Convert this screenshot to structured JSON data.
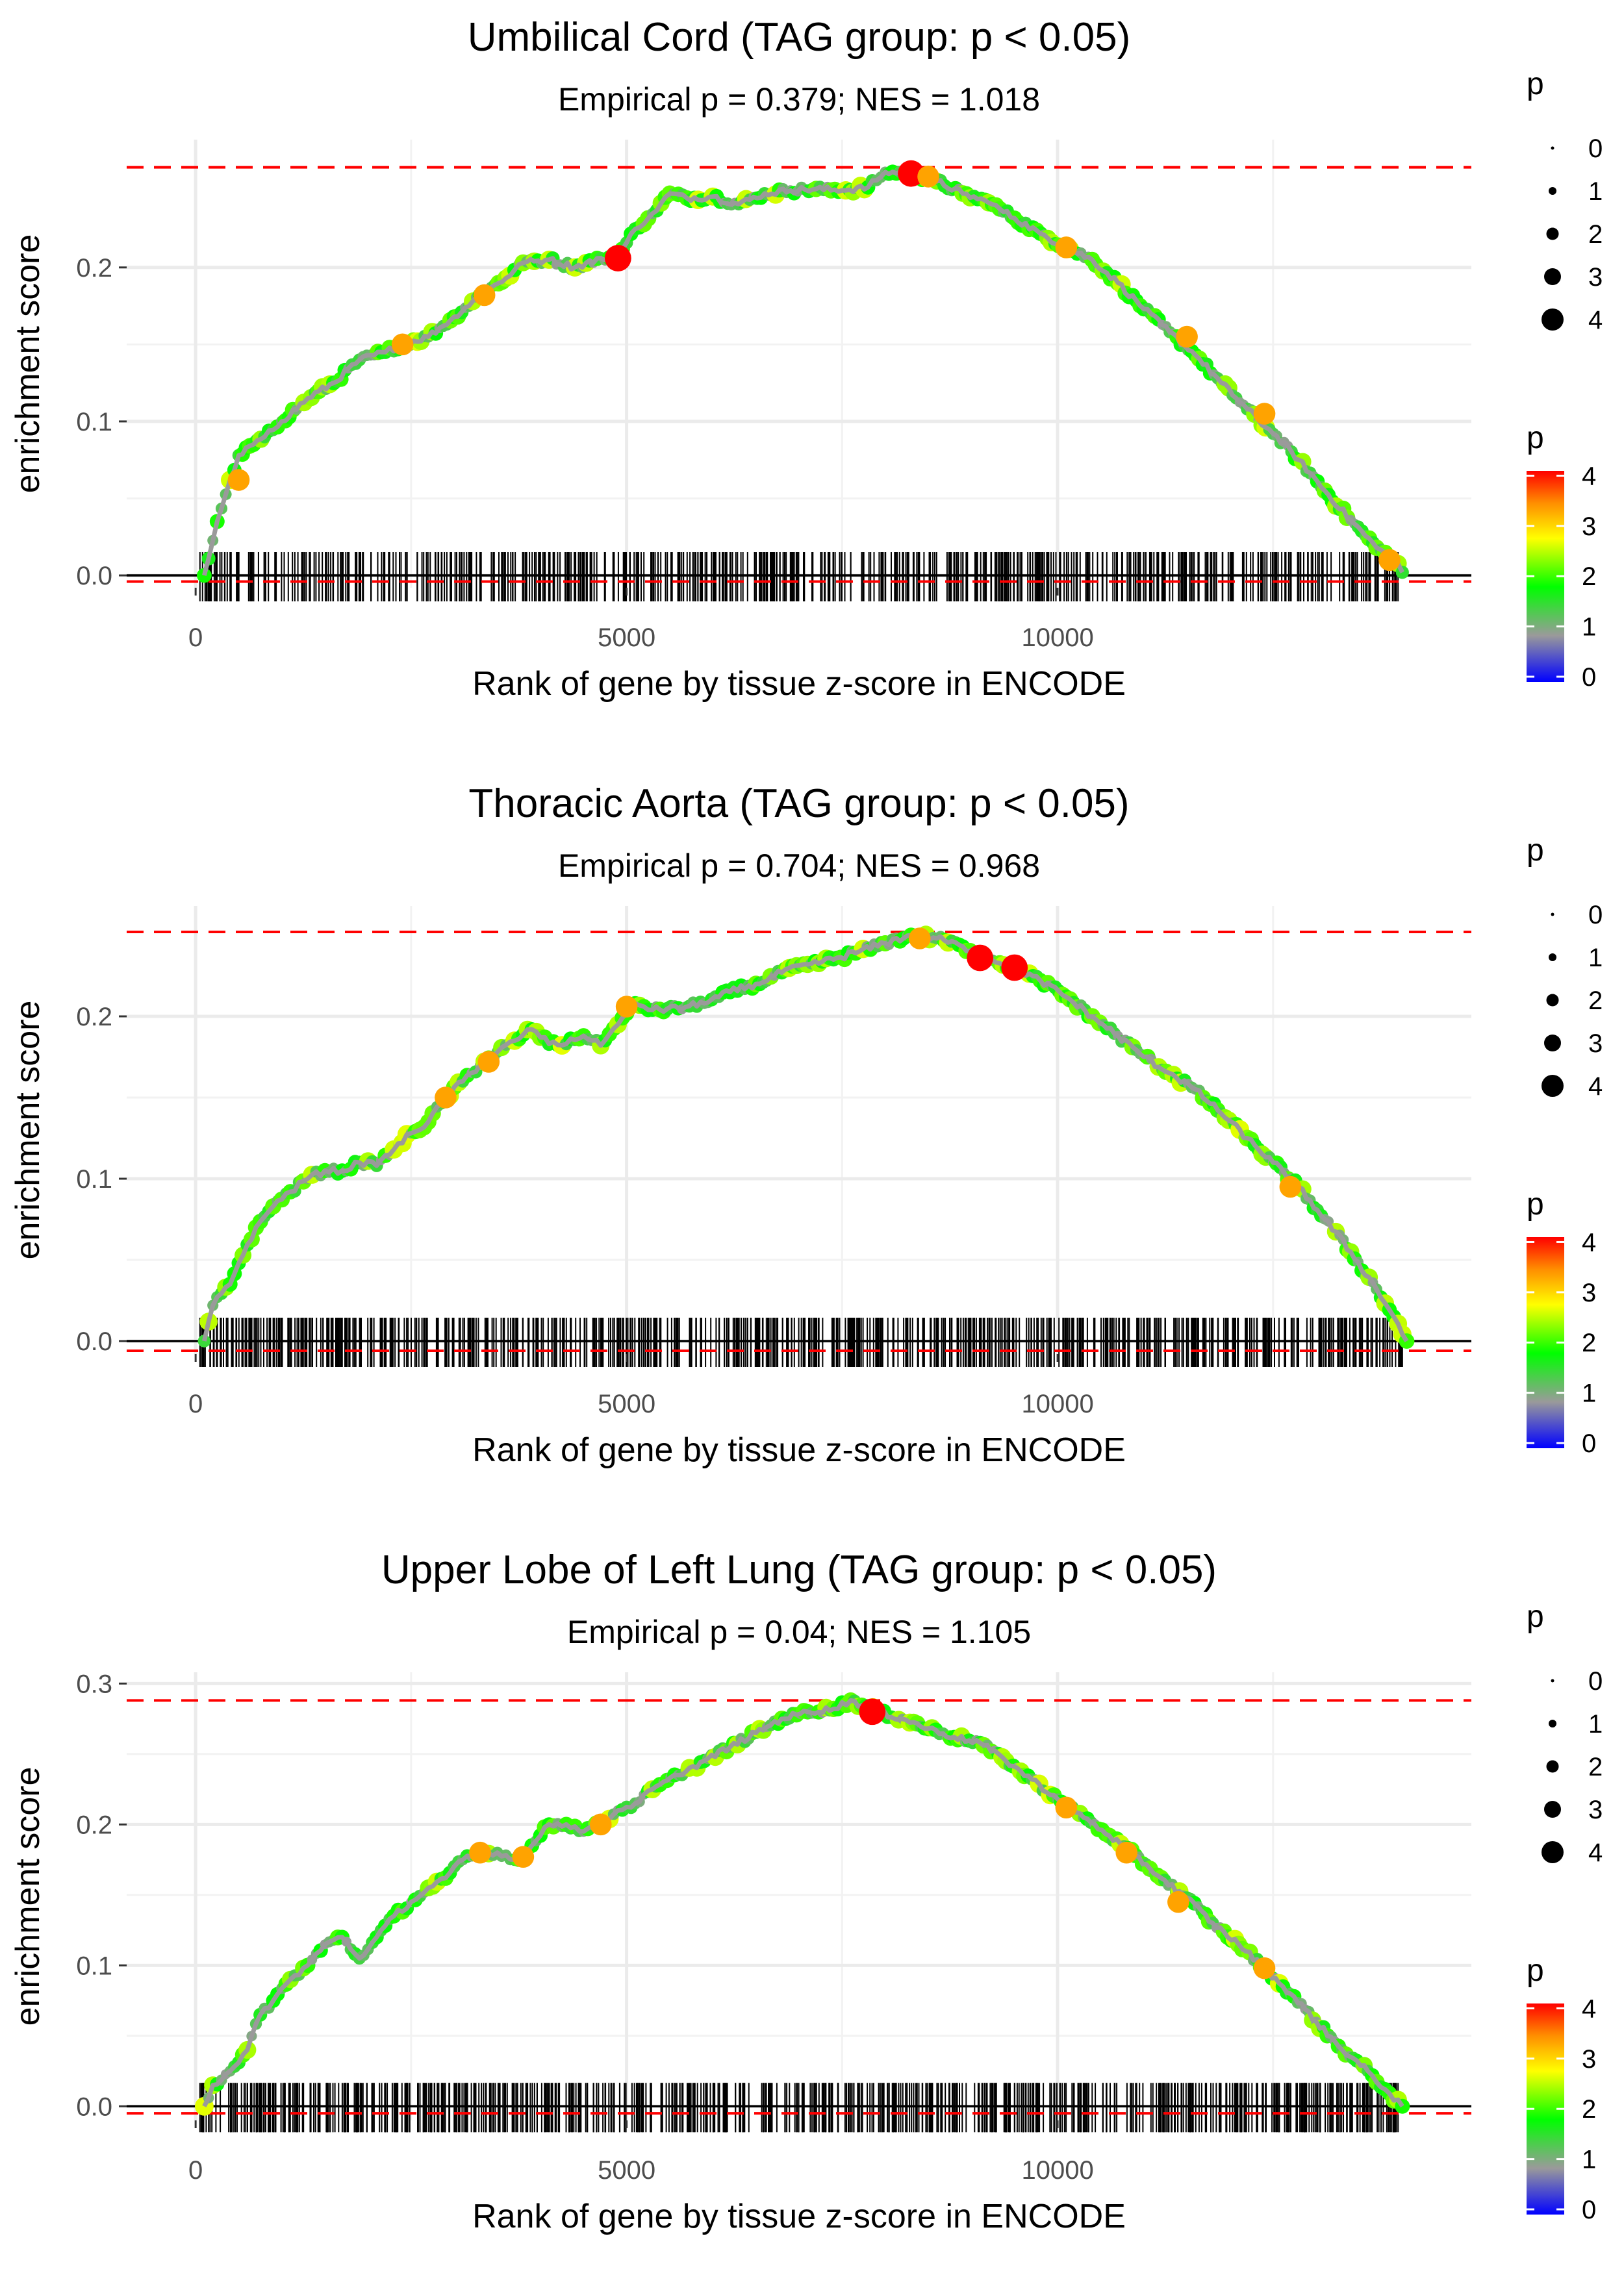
{
  "chart_data": [
    {
      "type": "line",
      "title": "Umbilical Cord (TAG group: p < 0.05)",
      "subtitle": "Empirical p = 0.379; NES = 1.018",
      "xlabel": "Rank of gene by tissue z-score in ENCODE",
      "ylabel": "enrichment score",
      "xlim": [
        -800,
        14800
      ],
      "ylim": [
        -0.008,
        0.283
      ],
      "xticks": [
        0,
        5000,
        10000
      ],
      "xtick_labels": [
        "0",
        "5000",
        "10000"
      ],
      "yticks": [
        0,
        0.1,
        0.2
      ],
      "ytick_labels": [
        "0.0",
        "0.1",
        "0.2"
      ],
      "max_es_line": 0.265,
      "min_es_line": -0.004,
      "curve": [
        [
          100,
          0
        ],
        [
          250,
          0.035
        ],
        [
          400,
          0.062
        ],
        [
          500,
          0.078
        ],
        [
          800,
          0.09
        ],
        [
          1000,
          0.1
        ],
        [
          1300,
          0.115
        ],
        [
          1600,
          0.125
        ],
        [
          1900,
          0.14
        ],
        [
          2200,
          0.145
        ],
        [
          2400,
          0.15
        ],
        [
          2700,
          0.155
        ],
        [
          3000,
          0.168
        ],
        [
          3300,
          0.182
        ],
        [
          3600,
          0.193
        ],
        [
          3800,
          0.203
        ],
        [
          4100,
          0.205
        ],
        [
          4400,
          0.2
        ],
        [
          4700,
          0.206
        ],
        [
          4900,
          0.207
        ],
        [
          5100,
          0.225
        ],
        [
          5300,
          0.235
        ],
        [
          5500,
          0.248
        ],
        [
          5700,
          0.245
        ],
        [
          6000,
          0.246
        ],
        [
          6300,
          0.241
        ],
        [
          6600,
          0.248
        ],
        [
          6900,
          0.25
        ],
        [
          7200,
          0.251
        ],
        [
          7500,
          0.25
        ],
        [
          7800,
          0.252
        ],
        [
          8000,
          0.262
        ],
        [
          8300,
          0.261
        ],
        [
          8600,
          0.256
        ],
        [
          8900,
          0.248
        ],
        [
          9200,
          0.242
        ],
        [
          9500,
          0.232
        ],
        [
          9800,
          0.222
        ],
        [
          10100,
          0.213
        ],
        [
          10400,
          0.205
        ],
        [
          10700,
          0.19
        ],
        [
          11000,
          0.173
        ],
        [
          11300,
          0.158
        ],
        [
          11600,
          0.143
        ],
        [
          11900,
          0.125
        ],
        [
          12200,
          0.108
        ],
        [
          12500,
          0.092
        ],
        [
          12800,
          0.075
        ],
        [
          13100,
          0.055
        ],
        [
          13400,
          0.036
        ],
        [
          13700,
          0.018
        ],
        [
          13900,
          0.01
        ],
        [
          14000,
          0.002
        ]
      ],
      "highlights": [
        [
          500,
          0.062,
          3
        ],
        [
          2400,
          0.15,
          3
        ],
        [
          3350,
          0.182,
          3
        ],
        [
          4900,
          0.206,
          4
        ],
        [
          8300,
          0.261,
          4
        ],
        [
          8500,
          0.259,
          3
        ],
        [
          10100,
          0.213,
          3
        ],
        [
          11500,
          0.155,
          3
        ],
        [
          12400,
          0.105,
          3
        ],
        [
          13850,
          0.01,
          3
        ]
      ],
      "tick_range": [
        50,
        13950
      ],
      "tick_count": 650,
      "size_legend": {
        "title": "p",
        "labels": [
          "0",
          "1",
          "2",
          "3",
          "4"
        ]
      },
      "color_legend": {
        "title": "p",
        "labels": [
          "4",
          "3",
          "2",
          "1",
          "0"
        ],
        "colors": [
          "#ff0000",
          "#ffff00",
          "#00ff00",
          "#999999",
          "#0000ff"
        ]
      }
    },
    {
      "type": "line",
      "title": "Thoracic Aorta (TAG group: p < 0.05)",
      "subtitle": "Empirical p = 0.704; NES = 0.968",
      "xlabel": "Rank of gene by tissue z-score in ENCODE",
      "ylabel": "enrichment score",
      "xlim": [
        -800,
        14800
      ],
      "ylim": [
        -0.008,
        0.268
      ],
      "xticks": [
        0,
        5000,
        10000
      ],
      "xtick_labels": [
        "0",
        "5000",
        "10000"
      ],
      "yticks": [
        0,
        0.1,
        0.2
      ],
      "ytick_labels": [
        "0.0",
        "0.1",
        "0.2"
      ],
      "max_es_line": 0.252,
      "min_es_line": -0.006,
      "curve": [
        [
          100,
          0
        ],
        [
          200,
          0.022
        ],
        [
          400,
          0.035
        ],
        [
          500,
          0.048
        ],
        [
          700,
          0.07
        ],
        [
          900,
          0.083
        ],
        [
          1100,
          0.092
        ],
        [
          1300,
          0.1
        ],
        [
          1500,
          0.105
        ],
        [
          1700,
          0.105
        ],
        [
          1900,
          0.11
        ],
        [
          2100,
          0.108
        ],
        [
          2300,
          0.118
        ],
        [
          2500,
          0.128
        ],
        [
          2700,
          0.135
        ],
        [
          2900,
          0.15
        ],
        [
          3100,
          0.16
        ],
        [
          3300,
          0.17
        ],
        [
          3500,
          0.178
        ],
        [
          3700,
          0.185
        ],
        [
          3900,
          0.192
        ],
        [
          4100,
          0.183
        ],
        [
          4300,
          0.183
        ],
        [
          4500,
          0.188
        ],
        [
          4700,
          0.182
        ],
        [
          4900,
          0.195
        ],
        [
          5100,
          0.208
        ],
        [
          5300,
          0.204
        ],
        [
          5600,
          0.205
        ],
        [
          5900,
          0.208
        ],
        [
          6200,
          0.215
        ],
        [
          6500,
          0.22
        ],
        [
          6800,
          0.227
        ],
        [
          7100,
          0.232
        ],
        [
          7400,
          0.235
        ],
        [
          7700,
          0.24
        ],
        [
          8000,
          0.245
        ],
        [
          8300,
          0.25
        ],
        [
          8600,
          0.248
        ],
        [
          8900,
          0.243
        ],
        [
          9200,
          0.236
        ],
        [
          9500,
          0.23
        ],
        [
          9800,
          0.222
        ],
        [
          10100,
          0.212
        ],
        [
          10400,
          0.2
        ],
        [
          10700,
          0.188
        ],
        [
          11000,
          0.175
        ],
        [
          11300,
          0.165
        ],
        [
          11600,
          0.155
        ],
        [
          11900,
          0.14
        ],
        [
          12200,
          0.125
        ],
        [
          12500,
          0.11
        ],
        [
          12800,
          0.095
        ],
        [
          13100,
          0.075
        ],
        [
          13400,
          0.055
        ],
        [
          13700,
          0.032
        ],
        [
          13900,
          0.015
        ],
        [
          14050,
          0
        ]
      ],
      "highlights": [
        [
          2900,
          0.15,
          3
        ],
        [
          3400,
          0.172,
          3
        ],
        [
          5000,
          0.206,
          3
        ],
        [
          8400,
          0.248,
          3
        ],
        [
          9100,
          0.236,
          4
        ],
        [
          9500,
          0.23,
          4
        ],
        [
          12700,
          0.095,
          3
        ]
      ],
      "tick_range": [
        50,
        14000
      ],
      "tick_count": 700,
      "size_legend": {
        "title": "p",
        "labels": [
          "0",
          "1",
          "2",
          "3",
          "4"
        ]
      },
      "color_legend": {
        "title": "p",
        "labels": [
          "4",
          "3",
          "2",
          "1",
          "0"
        ],
        "colors": [
          "#ff0000",
          "#ffff00",
          "#00ff00",
          "#999999",
          "#0000ff"
        ]
      }
    },
    {
      "type": "line",
      "title": "Upper Lobe of Left Lung (TAG group: p < 0.05)",
      "subtitle": "Empirical p = 0.04; NES = 1.105",
      "xlabel": "Rank of gene by tissue z-score in ENCODE",
      "ylabel": "enrichment score",
      "xlim": [
        -800,
        14800
      ],
      "ylim": [
        -0.01,
        0.308
      ],
      "xticks": [
        0,
        5000,
        10000
      ],
      "xtick_labels": [
        "0",
        "5000",
        "10000"
      ],
      "yticks": [
        0,
        0.1,
        0.2,
        0.3
      ],
      "ytick_labels": [
        "0.0",
        "0.1",
        "0.2",
        "0.3"
      ],
      "max_es_line": 0.288,
      "min_es_line": -0.005,
      "curve": [
        [
          100,
          0
        ],
        [
          200,
          0.015
        ],
        [
          400,
          0.025
        ],
        [
          600,
          0.04
        ],
        [
          750,
          0.065
        ],
        [
          900,
          0.075
        ],
        [
          1100,
          0.09
        ],
        [
          1300,
          0.1
        ],
        [
          1500,
          0.115
        ],
        [
          1700,
          0.12
        ],
        [
          1900,
          0.105
        ],
        [
          2100,
          0.12
        ],
        [
          2300,
          0.135
        ],
        [
          2500,
          0.145
        ],
        [
          2700,
          0.155
        ],
        [
          2900,
          0.162
        ],
        [
          3100,
          0.175
        ],
        [
          3300,
          0.18
        ],
        [
          3500,
          0.18
        ],
        [
          3700,
          0.175
        ],
        [
          3900,
          0.185
        ],
        [
          4100,
          0.2
        ],
        [
          4300,
          0.2
        ],
        [
          4500,
          0.195
        ],
        [
          4700,
          0.2
        ],
        [
          4900,
          0.21
        ],
        [
          5100,
          0.215
        ],
        [
          5300,
          0.225
        ],
        [
          5600,
          0.235
        ],
        [
          5900,
          0.245
        ],
        [
          6200,
          0.255
        ],
        [
          6500,
          0.265
        ],
        [
          6800,
          0.275
        ],
        [
          7100,
          0.28
        ],
        [
          7400,
          0.282
        ],
        [
          7600,
          0.288
        ],
        [
          7900,
          0.28
        ],
        [
          8200,
          0.275
        ],
        [
          8500,
          0.268
        ],
        [
          8800,
          0.262
        ],
        [
          9100,
          0.258
        ],
        [
          9400,
          0.245
        ],
        [
          9700,
          0.232
        ],
        [
          10000,
          0.218
        ],
        [
          10300,
          0.205
        ],
        [
          10600,
          0.192
        ],
        [
          10900,
          0.178
        ],
        [
          11200,
          0.162
        ],
        [
          11500,
          0.148
        ],
        [
          11800,
          0.13
        ],
        [
          12100,
          0.115
        ],
        [
          12400,
          0.098
        ],
        [
          12700,
          0.08
        ],
        [
          13000,
          0.06
        ],
        [
          13300,
          0.04
        ],
        [
          13600,
          0.025
        ],
        [
          13800,
          0.012
        ],
        [
          14000,
          0
        ]
      ],
      "highlights": [
        [
          3300,
          0.18,
          3
        ],
        [
          3800,
          0.177,
          3
        ],
        [
          4700,
          0.2,
          3
        ],
        [
          7850,
          0.28,
          4
        ],
        [
          10100,
          0.212,
          3
        ],
        [
          10800,
          0.18,
          3
        ],
        [
          11400,
          0.145,
          3
        ],
        [
          12400,
          0.098,
          3
        ]
      ],
      "tick_range": [
        50,
        13950
      ],
      "tick_count": 720,
      "size_legend": {
        "title": "p",
        "labels": [
          "0",
          "1",
          "2",
          "3",
          "4"
        ]
      },
      "color_legend": {
        "title": "p",
        "labels": [
          "4",
          "3",
          "2",
          "1",
          "0"
        ],
        "colors": [
          "#ff0000",
          "#ffff00",
          "#00ff00",
          "#999999",
          "#0000ff"
        ]
      }
    }
  ]
}
